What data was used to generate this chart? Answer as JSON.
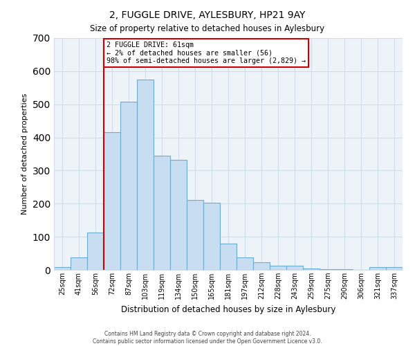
{
  "title": "2, FUGGLE DRIVE, AYLESBURY, HP21 9AY",
  "subtitle": "Size of property relative to detached houses in Aylesbury",
  "xlabel": "Distribution of detached houses by size in Aylesbury",
  "ylabel": "Number of detached properties",
  "bar_labels": [
    "25sqm",
    "41sqm",
    "56sqm",
    "72sqm",
    "87sqm",
    "103sqm",
    "119sqm",
    "134sqm",
    "150sqm",
    "165sqm",
    "181sqm",
    "197sqm",
    "212sqm",
    "228sqm",
    "243sqm",
    "259sqm",
    "275sqm",
    "290sqm",
    "306sqm",
    "321sqm",
    "337sqm"
  ],
  "bar_values": [
    8,
    38,
    113,
    415,
    507,
    575,
    345,
    333,
    211,
    202,
    80,
    37,
    22,
    13,
    13,
    5,
    2,
    2,
    0,
    8,
    8
  ],
  "bar_color": "#c8ddf0",
  "bar_edge_color": "#6aabd2",
  "vline_color": "#cc0000",
  "vline_x_index": 2,
  "annotation_text": "2 FUGGLE DRIVE: 61sqm\n← 2% of detached houses are smaller (56)\n98% of semi-detached houses are larger (2,829) →",
  "annotation_box_color": "#ffffff",
  "annotation_box_edge": "#cc0000",
  "ylim": [
    0,
    700
  ],
  "yticks": [
    0,
    100,
    200,
    300,
    400,
    500,
    600,
    700
  ],
  "grid_color": "#d0dce8",
  "footer1": "Contains HM Land Registry data © Crown copyright and database right 2024.",
  "footer2": "Contains public sector information licensed under the Open Government Licence v3.0."
}
